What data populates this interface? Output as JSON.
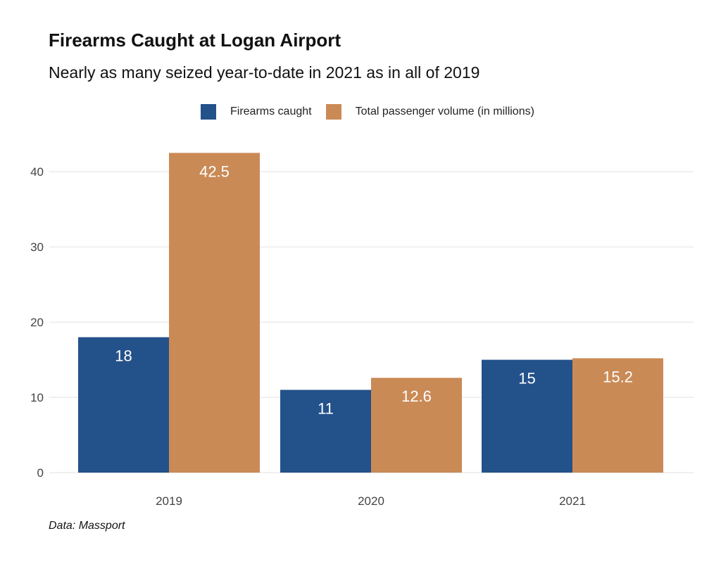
{
  "title": "Firearms Caught at Logan Airport",
  "subtitle": "Nearly as many seized year-to-date in 2021 as in all of 2019",
  "caption": "Data: Massport",
  "legend": [
    {
      "label": "Firearms caught",
      "color": "#23518A"
    },
    {
      "label": "Total passenger volume (in millions)",
      "color": "#CA8A56"
    }
  ],
  "chart_data": {
    "type": "bar",
    "categories": [
      "2019",
      "2020",
      "2021"
    ],
    "series": [
      {
        "name": "Firearms caught",
        "values": [
          18,
          11,
          15
        ],
        "color": "#23518A"
      },
      {
        "name": "Total passenger volume (in millions)",
        "values": [
          42.5,
          12.6,
          15.2
        ],
        "color": "#CA8A56"
      }
    ],
    "value_labels": [
      [
        "18",
        "11",
        "15"
      ],
      [
        "42.5",
        "12.6",
        "15.2"
      ]
    ],
    "yticks": [
      0,
      10,
      20,
      30,
      40
    ],
    "ylim": [
      0,
      44.5
    ],
    "grid": true,
    "legend_position": "top"
  }
}
